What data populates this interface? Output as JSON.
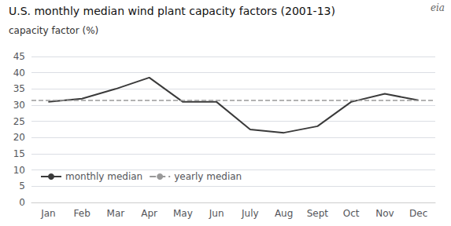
{
  "chart_data": {
    "type": "line",
    "title": "U.S. monthly median wind plant capacity factors (2001-13)",
    "ylabel": "capacity factor (%)",
    "categories": [
      "Jan",
      "Feb",
      "Mar",
      "Apr",
      "May",
      "Jun",
      "July",
      "Aug",
      "Sept",
      "Oct",
      "Nov",
      "Dec"
    ],
    "series": [
      {
        "name": "monthly median",
        "color": "#3a3a3a",
        "line_style": "solid",
        "values": [
          31.0,
          32.0,
          35.0,
          38.5,
          31.0,
          31.0,
          22.5,
          21.5,
          23.5,
          31.0,
          33.5,
          31.5
        ]
      }
    ],
    "hlines": [
      {
        "name": "yearly median",
        "value": 31.5,
        "color": "#999999",
        "line_style": "dashed"
      }
    ],
    "ylim": [
      0,
      45
    ],
    "yticks": [
      0,
      5,
      10,
      15,
      20,
      25,
      30,
      35,
      40,
      45
    ],
    "grid": true,
    "legend": "lower left",
    "annotations": [
      "eia"
    ]
  }
}
